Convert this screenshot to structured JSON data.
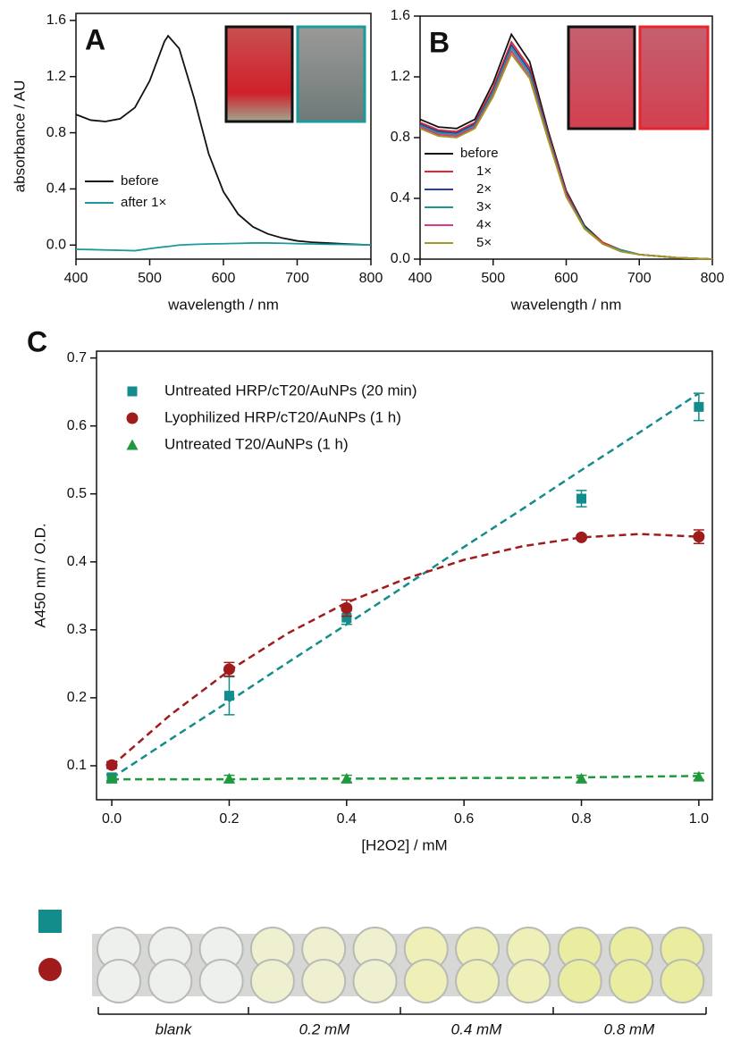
{
  "chart_data": [
    {
      "type": "line",
      "panel": "A",
      "xlabel": "wavelength / nm",
      "ylabel": "absorbance / AU",
      "x": [
        400,
        420,
        440,
        460,
        480,
        500,
        520,
        525,
        540,
        560,
        580,
        600,
        620,
        640,
        660,
        680,
        700,
        720,
        740,
        760,
        780,
        800
      ],
      "series": [
        {
          "name": "before",
          "color": "#111111",
          "values": [
            0.93,
            0.89,
            0.88,
            0.9,
            0.98,
            1.17,
            1.45,
            1.49,
            1.4,
            1.05,
            0.65,
            0.38,
            0.22,
            0.13,
            0.08,
            0.05,
            0.03,
            0.02,
            0.015,
            0.01,
            0.005,
            0.0
          ]
        },
        {
          "name": "after 1×",
          "color": "#1a9a9a",
          "values": [
            -0.03,
            -0.032,
            -0.035,
            -0.037,
            -0.04,
            -0.025,
            -0.012,
            -0.01,
            0.0,
            0.005,
            0.008,
            0.01,
            0.012,
            0.015,
            0.015,
            0.013,
            0.01,
            0.008,
            0.006,
            0.005,
            0.003,
            0.0
          ]
        }
      ],
      "xlim": [
        400,
        800
      ],
      "xticks": [
        400,
        500,
        600,
        700,
        800
      ],
      "ylim": [
        -0.1,
        1.65
      ],
      "yticks": [
        {
          "value": 0,
          "label": "0.0"
        },
        0.4,
        0.8,
        1.2,
        1.6
      ],
      "legend": "lower left"
    },
    {
      "type": "line",
      "panel": "B",
      "xlabel": "wavelength / nm",
      "x": [
        400,
        425,
        450,
        475,
        500,
        525,
        550,
        575,
        600,
        625,
        650,
        675,
        700,
        750,
        800
      ],
      "series": [
        {
          "name": "before",
          "color": "#111111",
          "values": [
            0.92,
            0.87,
            0.86,
            0.92,
            1.16,
            1.48,
            1.3,
            0.85,
            0.45,
            0.22,
            0.11,
            0.06,
            0.03,
            0.01,
            0.0
          ]
        },
        {
          "name": "1×",
          "color": "#e8242c",
          "values": [
            0.9,
            0.85,
            0.84,
            0.9,
            1.13,
            1.43,
            1.26,
            0.83,
            0.44,
            0.21,
            0.11,
            0.06,
            0.03,
            0.01,
            0.0
          ]
        },
        {
          "name": "2×",
          "color": "#2a3f9f",
          "values": [
            0.89,
            0.84,
            0.83,
            0.89,
            1.11,
            1.41,
            1.24,
            0.82,
            0.43,
            0.21,
            0.1,
            0.06,
            0.03,
            0.01,
            0.0
          ]
        },
        {
          "name": "3×",
          "color": "#1c9a8f",
          "values": [
            0.88,
            0.83,
            0.82,
            0.88,
            1.1,
            1.39,
            1.22,
            0.81,
            0.42,
            0.21,
            0.1,
            0.06,
            0.03,
            0.01,
            0.0
          ]
        },
        {
          "name": "4×",
          "color": "#e0338a",
          "values": [
            0.87,
            0.82,
            0.81,
            0.87,
            1.08,
            1.37,
            1.2,
            0.8,
            0.42,
            0.2,
            0.1,
            0.05,
            0.03,
            0.01,
            0.0
          ]
        },
        {
          "name": "5×",
          "color": "#a19a1e",
          "values": [
            0.86,
            0.81,
            0.8,
            0.86,
            1.07,
            1.35,
            1.19,
            0.79,
            0.41,
            0.2,
            0.1,
            0.05,
            0.03,
            0.01,
            0.0
          ]
        }
      ],
      "xlim": [
        400,
        800
      ],
      "xticks": [
        400,
        500,
        600,
        700,
        800
      ],
      "ylim": [
        0,
        1.6
      ],
      "yticks": [
        {
          "value": 0,
          "label": "0.0"
        },
        0.4,
        0.8,
        1.2,
        1.6
      ],
      "legend": "lower left"
    },
    {
      "type": "scatter",
      "panel": "C",
      "xlabel": "[H2O2] / mM",
      "ylabel": "A450 nm / O.D.",
      "x": [
        0,
        0.2,
        0.4,
        0.8,
        1.0
      ],
      "fit_x": [
        0,
        0.1,
        0.2,
        0.3,
        0.4,
        0.5,
        0.6,
        0.7,
        0.8,
        0.9,
        1.0
      ],
      "series": [
        {
          "name": "Untreated HRP/cT20/AuNPs (20 min)",
          "color": "#138c8c",
          "marker": "square",
          "values": [
            0.083,
            0.203,
            0.318,
            0.493,
            0.628
          ],
          "errors": [
            0.005,
            0.028,
            0.01,
            0.012,
            0.02
          ],
          "fit": [
            0.082,
            0.139,
            0.195,
            0.252,
            0.308,
            0.365,
            0.422,
            0.478,
            0.535,
            0.591,
            0.648
          ]
        },
        {
          "name": "Lyophilized HRP/cT20/AuNPs (1 h)",
          "color": "#a01c1c",
          "marker": "circle",
          "values": [
            0.101,
            0.242,
            0.332,
            0.436,
            0.437
          ],
          "errors": [
            0.005,
            0.01,
            0.012,
            0.003,
            0.01
          ],
          "fit": [
            0.1,
            0.175,
            0.24,
            0.295,
            0.34,
            0.375,
            0.403,
            0.423,
            0.436,
            0.441,
            0.437
          ]
        },
        {
          "name": "Untreated T20/AuNPs (1 h)",
          "color": "#1e9a3c",
          "marker": "triangle",
          "values": [
            0.081,
            0.081,
            0.081,
            0.081,
            0.084
          ],
          "errors": [
            0.005,
            0.005,
            0.005,
            0.005,
            0.005
          ],
          "fit": [
            0.08,
            0.08,
            0.08,
            0.081,
            0.081,
            0.081,
            0.082,
            0.082,
            0.083,
            0.084,
            0.085
          ]
        }
      ],
      "xlim": [
        -0.026,
        1.023
      ],
      "xticks": [
        {
          "value": 0,
          "label": "0.0"
        },
        0.2,
        0.4,
        0.6,
        0.8,
        {
          "value": 1,
          "label": "1.0"
        }
      ],
      "ylim": [
        0.05,
        0.71
      ],
      "yticks": [
        0.1,
        0.2,
        0.3,
        0.4,
        0.5,
        0.6,
        0.7
      ],
      "legend": "upper left"
    }
  ],
  "plate": {
    "labels": [
      "blank",
      "0.2 mM",
      "0.4 mM",
      "0.8 mM"
    ]
  }
}
